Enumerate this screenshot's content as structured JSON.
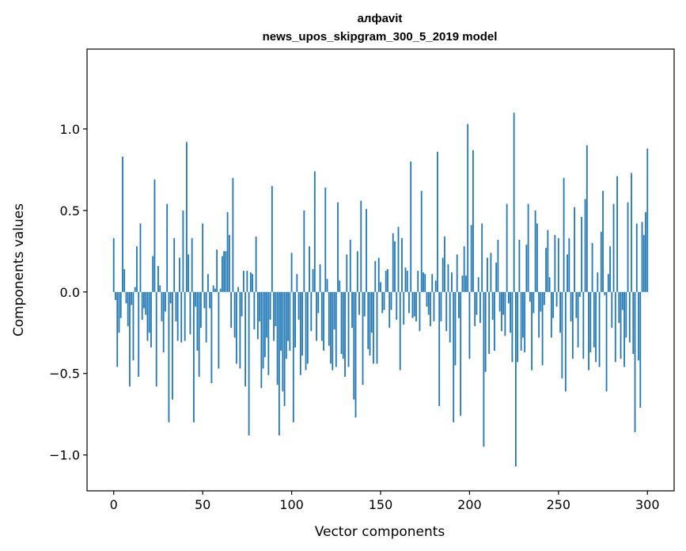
{
  "chart_data": {
    "type": "bar",
    "title": "алфavit",
    "subtitle": "news_upos_skipgram_300_5_2019 model",
    "xlabel": "Vector components",
    "ylabel": "Components values",
    "xlim": [
      -15,
      315
    ],
    "ylim": [
      -1.22,
      1.49
    ],
    "xticks": [
      0,
      50,
      100,
      150,
      200,
      250,
      300
    ],
    "yticks": [
      -1.0,
      -0.5,
      0.0,
      0.5,
      1.0
    ],
    "ytick_labels": [
      "−1.0",
      "−0.5",
      "0.0",
      "0.5",
      "1.0"
    ],
    "bar_color": "#1f77b4",
    "grid": false,
    "values": [
      0.33,
      -0.05,
      -0.46,
      -0.25,
      -0.16,
      0.83,
      0.14,
      -0.07,
      -0.21,
      -0.58,
      -0.08,
      -0.42,
      0.03,
      0.28,
      -0.52,
      0.42,
      -0.17,
      -0.1,
      -0.14,
      -0.3,
      -0.25,
      -0.34,
      0.22,
      0.69,
      -0.58,
      0.16,
      0.04,
      -0.18,
      -0.37,
      -0.12,
      0.54,
      -0.8,
      -0.07,
      -0.66,
      0.33,
      -0.18,
      -0.3,
      0.21,
      -0.31,
      0.5,
      -0.3,
      0.92,
      0.23,
      -0.26,
      0.33,
      -0.8,
      -0.09,
      -0.36,
      -0.52,
      -0.22,
      0.42,
      -0.1,
      -0.31,
      0.11,
      -0.1,
      -0.56,
      0.04,
      0.02,
      0.26,
      -0.47,
      0.02,
      0.22,
      0.25,
      0.25,
      0.49,
      0.35,
      -0.22,
      0.7,
      -0.28,
      -0.44,
      0.03,
      -0.47,
      -0.15,
      0.13,
      -0.58,
      0.13,
      -0.88,
      0.12,
      0.11,
      -0.23,
      0.34,
      -0.29,
      -0.18,
      -0.59,
      -0.47,
      -0.4,
      -0.28,
      -0.51,
      -0.17,
      0.65,
      -0.3,
      -0.21,
      -0.57,
      -0.88,
      -0.36,
      -0.61,
      -0.7,
      -0.41,
      -0.3,
      -0.36,
      0.24,
      -0.8,
      -0.34,
      0.11,
      -0.17,
      -0.51,
      -0.39,
      0.5,
      -0.48,
      -0.44,
      0.28,
      -0.24,
      0.14,
      0.74,
      -0.3,
      -0.13,
      0.17,
      -0.3,
      -0.36,
      0.64,
      0.08,
      -0.33,
      -0.44,
      -0.48,
      -0.23,
      -0.46,
      0.55,
      0.07,
      -0.38,
      -0.41,
      -0.52,
      0.23,
      -0.46,
      0.32,
      -0.22,
      -0.66,
      -0.77,
      0.25,
      -0.14,
      0.56,
      -0.57,
      -0.15,
      0.51,
      -0.35,
      -0.39,
      -0.25,
      -0.44,
      0.19,
      -0.44,
      0.21,
      0.06,
      -0.13,
      -0.11,
      0.13,
      0.14,
      -0.22,
      -0.11,
      0.36,
      0.31,
      -0.17,
      0.4,
      -0.48,
      0.33,
      -0.2,
      0.15,
      0.13,
      -0.13,
      0.8,
      -0.16,
      -0.15,
      -0.18,
      0.13,
      -0.24,
      0.62,
      0.12,
      0.11,
      -0.09,
      -0.14,
      -0.21,
      0.11,
      -0.18,
      0.07,
      0.86,
      -0.7,
      -0.18,
      0.21,
      0.34,
      -0.24,
      0.17,
      -0.31,
      0.12,
      -0.8,
      -0.45,
      0.23,
      -0.16,
      -0.76,
      0.1,
      0.28,
      0.1,
      1.03,
      -0.41,
      0.41,
      0.87,
      -0.21,
      -0.14,
      0.09,
      -0.19,
      0.42,
      -0.95,
      -0.49,
      0.21,
      -0.38,
      0.24,
      -0.17,
      -0.36,
      0.18,
      0.32,
      -0.12,
      -0.24,
      -0.14,
      -0.27,
      0.54,
      -0.07,
      -0.25,
      -0.43,
      1.1,
      -1.07,
      -0.43,
      0.32,
      -0.36,
      -0.28,
      -0.37,
      0.29,
      0.54,
      -0.06,
      -0.48,
      -0.13,
      0.5,
      0.42,
      -0.28,
      -0.12,
      -0.45,
      -0.08,
      0.27,
      0.38,
      0.09,
      -0.28,
      -0.16,
      0.35,
      -0.09,
      0.33,
      -0.25,
      -0.53,
      0.7,
      -0.61,
      0.23,
      0.33,
      -0.18,
      -0.41,
      0.52,
      -0.16,
      -0.34,
      -0.03,
      0.46,
      -0.41,
      0.57,
      0.9,
      -0.48,
      -0.37,
      0.3,
      -0.34,
      -0.43,
      0.12,
      -0.46,
      0.37,
      0.62,
      -0.02,
      -0.61,
      0.11,
      0.28,
      -0.22,
      0.54,
      -0.43,
      0.71,
      -0.19,
      -0.41,
      -0.11,
      -0.46,
      -0.28,
      0.55,
      -0.31,
      0.73,
      -0.38,
      -0.86,
      0.42,
      -0.42,
      -0.71,
      0.43,
      0.35,
      0.49,
      0.88
    ]
  }
}
